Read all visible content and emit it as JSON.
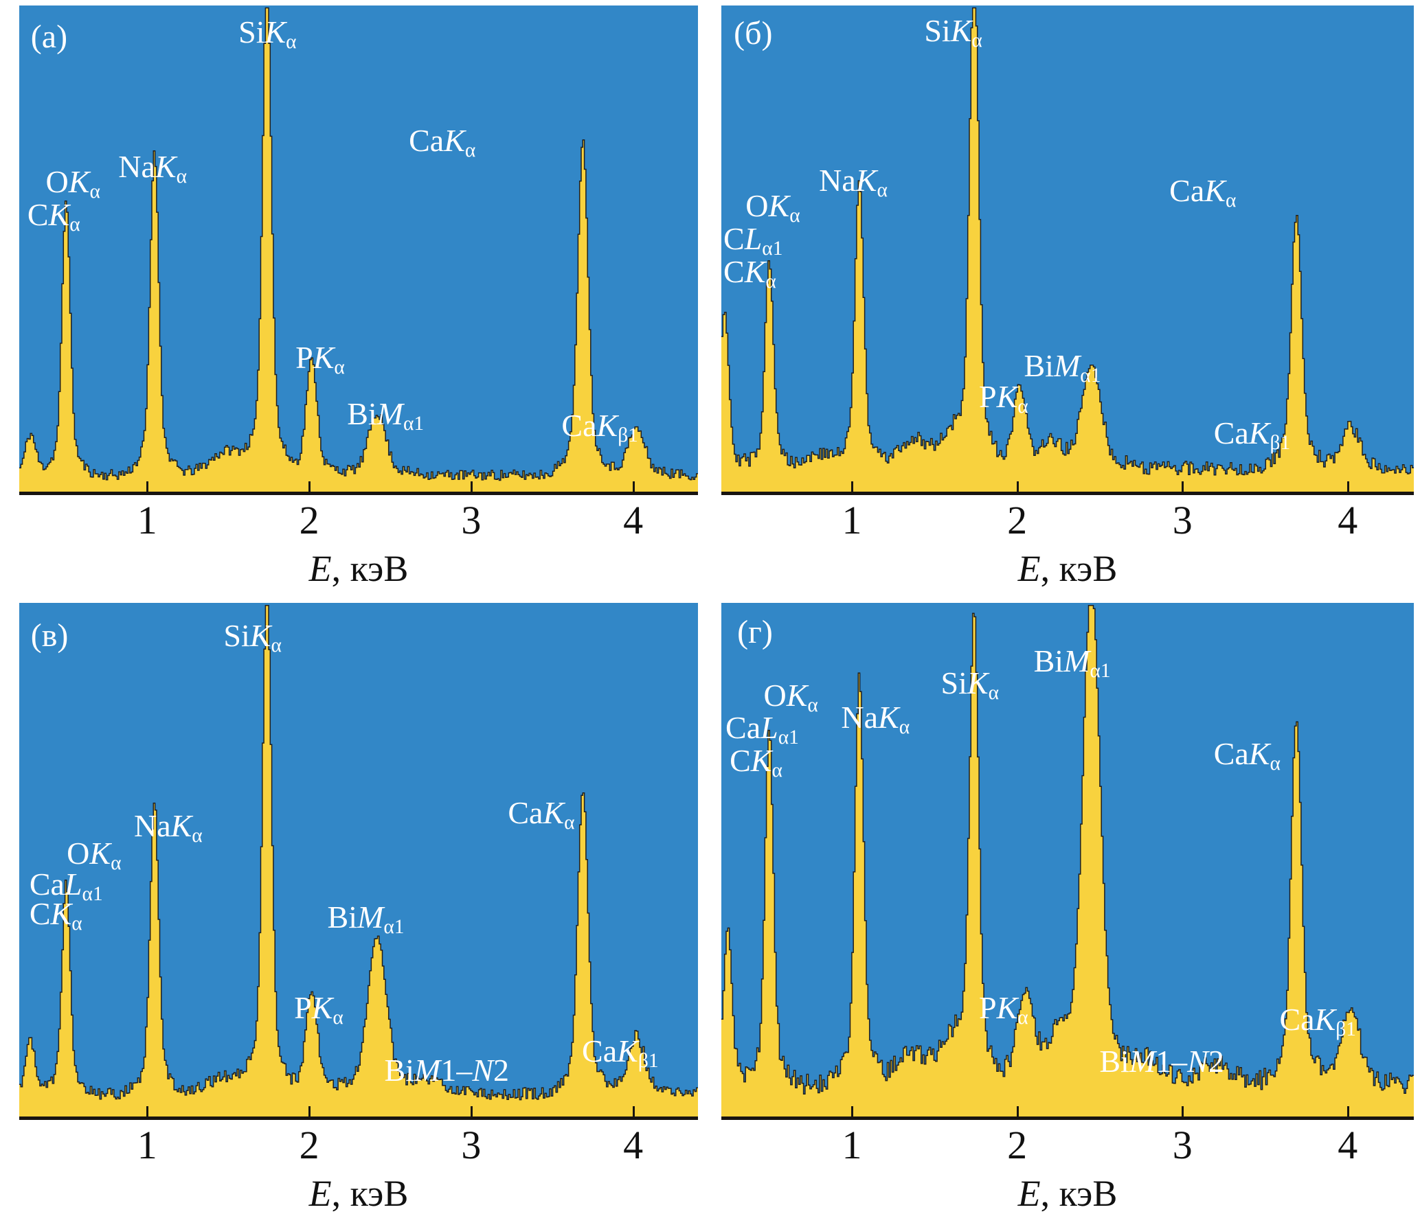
{
  "figure": {
    "colors": {
      "plot_background": "#3287c7",
      "spectrum_fill": "#f8d23e",
      "spectrum_outline": "#1f1f1f",
      "axis_color": "#181410",
      "label_color": "#ffffff",
      "tick_text_color": "#111111",
      "page_background": "#ffffff"
    },
    "axis": {
      "e_min": 0.21,
      "e_max": 4.4,
      "ticks": [
        1,
        2,
        3,
        4
      ],
      "title_segments": [
        {
          "t": "E",
          "i": true
        },
        {
          "t": ", кэВ"
        }
      ]
    }
  },
  "chart_data": [
    {
      "id": "a",
      "type": "area",
      "letter": "(а)",
      "letter_pos": {
        "x": 0.017,
        "y": 0.031
      },
      "xlabel": "E, кэВ",
      "x_ticks": [
        1,
        2,
        3,
        4
      ],
      "x_range_kev": [
        0.21,
        4.4
      ],
      "seed": 11,
      "baseline": 0.034,
      "noise": 0.011,
      "peaks": [
        {
          "e": 0.28,
          "h": 0.075,
          "w": 0.03,
          "n": "C Ka"
        },
        {
          "e": 0.5,
          "h": 0.5,
          "w": 0.024,
          "n": "O Ka"
        },
        {
          "e": 1.045,
          "h": 0.59,
          "w": 0.025,
          "n": "Na Ka"
        },
        {
          "e": 1.5,
          "h": 0.045,
          "w": 0.1,
          "n": "background"
        },
        {
          "e": 1.74,
          "h": 0.9,
          "w": 0.026,
          "n": "Si Ka"
        },
        {
          "e": 2.015,
          "h": 0.21,
          "w": 0.032,
          "n": "P Ka"
        },
        {
          "e": 2.42,
          "h": 0.115,
          "w": 0.05,
          "n": "Bi Ma1"
        },
        {
          "e": 3.69,
          "h": 0.61,
          "w": 0.03,
          "n": "Ca Ka"
        },
        {
          "e": 4.02,
          "h": 0.085,
          "w": 0.05,
          "n": "Ca Kb1"
        }
      ],
      "labels": [
        {
          "x": 0.039,
          "y": 0.33,
          "seg": [
            {
              "t": "O"
            },
            {
              "t": "K",
              "i": true
            },
            {
              "t": "α",
              "s": true
            }
          ]
        },
        {
          "x": 0.012,
          "y": 0.398,
          "seg": [
            {
              "t": "C"
            },
            {
              "t": "K",
              "i": true
            },
            {
              "t": "α",
              "s": true
            }
          ]
        },
        {
          "x": 0.146,
          "y": 0.3,
          "seg": [
            {
              "t": "Na"
            },
            {
              "t": "K",
              "i": true
            },
            {
              "t": "α",
              "s": true
            }
          ]
        },
        {
          "x": 0.323,
          "y": 0.022,
          "seg": [
            {
              "t": "Si"
            },
            {
              "t": "K",
              "i": true
            },
            {
              "t": "α",
              "s": true
            }
          ]
        },
        {
          "x": 0.407,
          "y": 0.692,
          "seg": [
            {
              "t": "P"
            },
            {
              "t": "K",
              "i": true
            },
            {
              "t": "α",
              "s": true
            }
          ]
        },
        {
          "x": 0.483,
          "y": 0.808,
          "seg": [
            {
              "t": "Bi"
            },
            {
              "t": "M",
              "i": true
            },
            {
              "t": "α1",
              "s": true
            }
          ]
        },
        {
          "x": 0.574,
          "y": 0.246,
          "seg": [
            {
              "t": "Ca"
            },
            {
              "t": "K",
              "i": true
            },
            {
              "t": "α",
              "s": true
            }
          ]
        },
        {
          "x": 0.799,
          "y": 0.832,
          "seg": [
            {
              "t": "Ca"
            },
            {
              "t": "K",
              "i": true
            },
            {
              "t": "β1",
              "s": true
            }
          ]
        }
      ]
    },
    {
      "id": "b",
      "type": "area",
      "letter": "(б)",
      "letter_pos": {
        "x": 0.018,
        "y": 0.024
      },
      "xlabel": "E, кэВ",
      "x_ticks": [
        1,
        2,
        3,
        4
      ],
      "x_range_kev": [
        0.21,
        4.4
      ],
      "seed": 29,
      "baseline": 0.048,
      "noise": 0.015,
      "peaks": [
        {
          "e": 0.23,
          "h": 0.29,
          "w": 0.024,
          "n": "C Ka"
        },
        {
          "e": 0.5,
          "h": 0.38,
          "w": 0.024,
          "n": "O Ka"
        },
        {
          "e": 0.8,
          "h": 0.025,
          "w": 0.09,
          "n": "background"
        },
        {
          "e": 1.045,
          "h": 0.52,
          "w": 0.025,
          "n": "Na Ka"
        },
        {
          "e": 1.38,
          "h": 0.05,
          "w": 0.09,
          "n": "background"
        },
        {
          "e": 1.6,
          "h": 0.05,
          "w": 0.07,
          "n": "background"
        },
        {
          "e": 1.74,
          "h": 0.91,
          "w": 0.026,
          "n": "Si Ka"
        },
        {
          "e": 2.015,
          "h": 0.145,
          "w": 0.034,
          "n": "P Ka"
        },
        {
          "e": 2.2,
          "h": 0.04,
          "w": 0.07,
          "n": "background"
        },
        {
          "e": 2.45,
          "h": 0.185,
          "w": 0.055,
          "n": "Bi Ma1"
        },
        {
          "e": 3.69,
          "h": 0.46,
          "w": 0.03,
          "n": "Ca Ka"
        },
        {
          "e": 4.02,
          "h": 0.075,
          "w": 0.05,
          "n": "Ca Kb1"
        }
      ],
      "labels": [
        {
          "x": 0.293,
          "y": 0.02,
          "seg": [
            {
              "t": "Si"
            },
            {
              "t": "K",
              "i": true
            },
            {
              "t": "α",
              "s": true
            }
          ]
        },
        {
          "x": 0.141,
          "y": 0.328,
          "seg": [
            {
              "t": "Na"
            },
            {
              "t": "K",
              "i": true
            },
            {
              "t": "α",
              "s": true
            }
          ]
        },
        {
          "x": 0.035,
          "y": 0.38,
          "seg": [
            {
              "t": "O"
            },
            {
              "t": "K",
              "i": true
            },
            {
              "t": "α",
              "s": true
            }
          ]
        },
        {
          "x": 0.003,
          "y": 0.448,
          "seg": [
            {
              "t": "C"
            },
            {
              "t": "L",
              "i": true
            },
            {
              "t": "α1",
              "s": true
            }
          ]
        },
        {
          "x": 0.003,
          "y": 0.515,
          "seg": [
            {
              "t": "C"
            },
            {
              "t": "K",
              "i": true
            },
            {
              "t": "α",
              "s": true
            }
          ]
        },
        {
          "x": 0.372,
          "y": 0.772,
          "seg": [
            {
              "t": "P"
            },
            {
              "t": "K",
              "i": true
            },
            {
              "t": "α",
              "s": true
            }
          ]
        },
        {
          "x": 0.437,
          "y": 0.709,
          "seg": [
            {
              "t": "Bi"
            },
            {
              "t": "M",
              "i": true
            },
            {
              "t": "α1",
              "s": true
            }
          ]
        },
        {
          "x": 0.647,
          "y": 0.349,
          "seg": [
            {
              "t": "Ca"
            },
            {
              "t": "K",
              "i": true
            },
            {
              "t": "α",
              "s": true
            }
          ]
        },
        {
          "x": 0.711,
          "y": 0.848,
          "seg": [
            {
              "t": "Ca"
            },
            {
              "t": "K",
              "i": true
            },
            {
              "t": "β1",
              "s": true
            }
          ]
        }
      ]
    },
    {
      "id": "v",
      "type": "area",
      "letter": "(в)",
      "letter_pos": {
        "x": 0.017,
        "y": 0.032
      },
      "xlabel": "E, кэВ",
      "x_ticks": [
        1,
        2,
        3,
        4
      ],
      "x_range_kev": [
        0.21,
        4.4
      ],
      "seed": 47,
      "baseline": 0.044,
      "noise": 0.012,
      "peaks": [
        {
          "e": 0.28,
          "h": 0.095,
          "w": 0.028,
          "n": "C Ka"
        },
        {
          "e": 0.5,
          "h": 0.365,
          "w": 0.024,
          "n": "O Ka"
        },
        {
          "e": 1.045,
          "h": 0.505,
          "w": 0.025,
          "n": "Na Ka"
        },
        {
          "e": 1.5,
          "h": 0.03,
          "w": 0.12,
          "n": "background"
        },
        {
          "e": 1.74,
          "h": 0.875,
          "w": 0.026,
          "n": "Si Ka"
        },
        {
          "e": 2.015,
          "h": 0.175,
          "w": 0.034,
          "n": "P Ka"
        },
        {
          "e": 2.42,
          "h": 0.27,
          "w": 0.055,
          "n": "Bi Ma1"
        },
        {
          "e": 2.75,
          "h": 0.02,
          "w": 0.1,
          "n": "Bi M1-N2"
        },
        {
          "e": 3.69,
          "h": 0.525,
          "w": 0.03,
          "n": "Ca Ka"
        },
        {
          "e": 4.02,
          "h": 0.1,
          "w": 0.05,
          "n": "Ca Kb1"
        }
      ],
      "labels": [
        {
          "x": 0.301,
          "y": 0.033,
          "seg": [
            {
              "t": "Si"
            },
            {
              "t": "K",
              "i": true
            },
            {
              "t": "α",
              "s": true
            }
          ]
        },
        {
          "x": 0.169,
          "y": 0.404,
          "seg": [
            {
              "t": "Na"
            },
            {
              "t": "K",
              "i": true
            },
            {
              "t": "α",
              "s": true
            }
          ]
        },
        {
          "x": 0.07,
          "y": 0.457,
          "seg": [
            {
              "t": "O"
            },
            {
              "t": "K",
              "i": true
            },
            {
              "t": "α",
              "s": true
            }
          ]
        },
        {
          "x": 0.015,
          "y": 0.517,
          "seg": [
            {
              "t": "Ca"
            },
            {
              "t": "L",
              "i": true
            },
            {
              "t": "α1",
              "s": true
            }
          ]
        },
        {
          "x": 0.015,
          "y": 0.575,
          "seg": [
            {
              "t": "C"
            },
            {
              "t": "K",
              "i": true
            },
            {
              "t": "α",
              "s": true
            }
          ]
        },
        {
          "x": 0.405,
          "y": 0.758,
          "seg": [
            {
              "t": "P"
            },
            {
              "t": "K",
              "i": true
            },
            {
              "t": "α",
              "s": true
            }
          ]
        },
        {
          "x": 0.454,
          "y": 0.582,
          "seg": [
            {
              "t": "Bi"
            },
            {
              "t": "M",
              "i": true
            },
            {
              "t": "α1",
              "s": true
            }
          ]
        },
        {
          "x": 0.538,
          "y": 0.88,
          "seg": [
            {
              "t": "Bi"
            },
            {
              "t": "M",
              "i": true
            },
            {
              "t": "1–"
            },
            {
              "t": "N",
              "i": true
            },
            {
              "t": "2"
            }
          ]
        },
        {
          "x": 0.72,
          "y": 0.378,
          "seg": [
            {
              "t": "Ca"
            },
            {
              "t": "K",
              "i": true
            },
            {
              "t": "α",
              "s": true
            }
          ]
        },
        {
          "x": 0.829,
          "y": 0.842,
          "seg": [
            {
              "t": "Ca"
            },
            {
              "t": "K",
              "i": true
            },
            {
              "t": "β1",
              "s": true
            }
          ]
        }
      ]
    },
    {
      "id": "g",
      "type": "area",
      "letter": "(г)",
      "letter_pos": {
        "x": 0.023,
        "y": 0.025
      },
      "xlabel": "E, кэВ",
      "x_ticks": [
        1,
        2,
        3,
        4
      ],
      "x_range_kev": [
        0.21,
        4.4
      ],
      "seed": 83,
      "baseline": 0.062,
      "noise": 0.02,
      "peaks": [
        {
          "e": 0.25,
          "h": 0.27,
          "w": 0.024,
          "n": "C Ka"
        },
        {
          "e": 0.5,
          "h": 0.61,
          "w": 0.024,
          "n": "O Ka"
        },
        {
          "e": 1.045,
          "h": 0.7,
          "w": 0.025,
          "n": "Na Ka"
        },
        {
          "e": 1.35,
          "h": 0.05,
          "w": 0.08,
          "n": "background"
        },
        {
          "e": 1.6,
          "h": 0.07,
          "w": 0.09,
          "n": "background"
        },
        {
          "e": 1.74,
          "h": 0.79,
          "w": 0.026,
          "n": "Si Ka"
        },
        {
          "e": 2.05,
          "h": 0.155,
          "w": 0.05,
          "n": "P Ka"
        },
        {
          "e": 2.25,
          "h": 0.06,
          "w": 0.06,
          "n": "background"
        },
        {
          "e": 2.45,
          "h": 0.85,
          "w": 0.05,
          "n": "Bi Ma1"
        },
        {
          "e": 2.8,
          "h": 0.04,
          "w": 0.08,
          "n": "Bi M1-N2"
        },
        {
          "e": 3.2,
          "h": 0.035,
          "w": 0.1,
          "n": "background"
        },
        {
          "e": 3.69,
          "h": 0.63,
          "w": 0.03,
          "n": "Ca Ka"
        },
        {
          "e": 4.02,
          "h": 0.135,
          "w": 0.05,
          "n": "Ca Kb1"
        }
      ],
      "labels": [
        {
          "x": 0.061,
          "y": 0.15,
          "seg": [
            {
              "t": "O"
            },
            {
              "t": "K",
              "i": true
            },
            {
              "t": "α",
              "s": true
            }
          ]
        },
        {
          "x": 0.006,
          "y": 0.213,
          "seg": [
            {
              "t": "Ca"
            },
            {
              "t": "L",
              "i": true
            },
            {
              "t": "α1",
              "s": true
            }
          ]
        },
        {
          "x": 0.012,
          "y": 0.277,
          "seg": [
            {
              "t": "C"
            },
            {
              "t": "K",
              "i": true
            },
            {
              "t": "α",
              "s": true
            }
          ]
        },
        {
          "x": 0.173,
          "y": 0.193,
          "seg": [
            {
              "t": "Na"
            },
            {
              "t": "K",
              "i": true
            },
            {
              "t": "α",
              "s": true
            }
          ]
        },
        {
          "x": 0.317,
          "y": 0.126,
          "seg": [
            {
              "t": "Si"
            },
            {
              "t": "K",
              "i": true
            },
            {
              "t": "α",
              "s": true
            }
          ]
        },
        {
          "x": 0.451,
          "y": 0.083,
          "seg": [
            {
              "t": "Bi"
            },
            {
              "t": "M",
              "i": true
            },
            {
              "t": "α1",
              "s": true
            }
          ]
        },
        {
          "x": 0.711,
          "y": 0.263,
          "seg": [
            {
              "t": "Ca"
            },
            {
              "t": "K",
              "i": true
            },
            {
              "t": "α",
              "s": true
            }
          ]
        },
        {
          "x": 0.372,
          "y": 0.758,
          "seg": [
            {
              "t": "P"
            },
            {
              "t": "K",
              "i": true
            },
            {
              "t": "α",
              "s": true
            }
          ]
        },
        {
          "x": 0.546,
          "y": 0.862,
          "seg": [
            {
              "t": "Bi"
            },
            {
              "t": "M",
              "i": true
            },
            {
              "t": "1–"
            },
            {
              "t": "N",
              "i": true
            },
            {
              "t": "2"
            }
          ]
        },
        {
          "x": 0.806,
          "y": 0.781,
          "seg": [
            {
              "t": "Ca"
            },
            {
              "t": "K",
              "i": true
            },
            {
              "t": "β1",
              "s": true
            }
          ]
        }
      ]
    }
  ]
}
